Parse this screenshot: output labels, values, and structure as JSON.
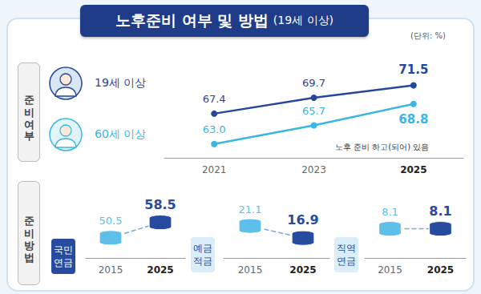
{
  "title": "노후준비 여부 및 방법",
  "subtitle": "(19세 이상)",
  "unit": "(단위: %)",
  "sections": [
    "준비여부",
    "준비방법"
  ],
  "chart_data": [
    {
      "type": "line",
      "annotation": "노후 준비 하고(되어) 있음",
      "categories": [
        "2021",
        "2023",
        "2025"
      ],
      "series": [
        {
          "name": "19세 이상",
          "color": "#27479a",
          "marker": "circle",
          "values": [
            67.4,
            69.7,
            71.5
          ]
        },
        {
          "name": "60세 이상",
          "color": "#39b7e3",
          "marker": "circle",
          "values": [
            63.0,
            65.7,
            68.8
          ],
          "value_labels": [
            "63.0",
            "65.7",
            "68.8"
          ]
        }
      ],
      "ylim": [
        61,
        74
      ],
      "yticks": [],
      "grid": false,
      "data_labels": true,
      "tick_labels": "x"
    },
    {
      "type": "line",
      "title": "국민연금",
      "categories": [
        "2015",
        "2025"
      ],
      "values": [
        50.5,
        58.5
      ],
      "colors": [
        "#5ec0ea",
        "#274b9f"
      ],
      "color": "#7aa7d8",
      "marker": "coin",
      "line_style": "dashed",
      "ylim": [
        40,
        70
      ],
      "yticks": [],
      "grid": false,
      "data_labels": true,
      "tick_labels": "x"
    },
    {
      "type": "line",
      "title": "예금적금",
      "categories": [
        "2015",
        "2025"
      ],
      "values": [
        21.1,
        16.9
      ],
      "colors": [
        "#5ec0ea",
        "#274b9f"
      ],
      "color": "#7aa7d8",
      "marker": "coin",
      "line_style": "dashed",
      "ylim": [
        10,
        30
      ],
      "yticks": [],
      "grid": false,
      "data_labels": true,
      "tick_labels": "x"
    },
    {
      "type": "line",
      "title": "직역연금",
      "categories": [
        "2015",
        "2025"
      ],
      "values": [
        8.1,
        8.1
      ],
      "colors": [
        "#5ec0ea",
        "#274b9f"
      ],
      "color": "#7aa7d8",
      "marker": "coin",
      "line_style": "dashed",
      "ylim": [
        0,
        16
      ],
      "yticks": [],
      "grid": false,
      "data_labels": true,
      "tick_labels": "x"
    }
  ]
}
